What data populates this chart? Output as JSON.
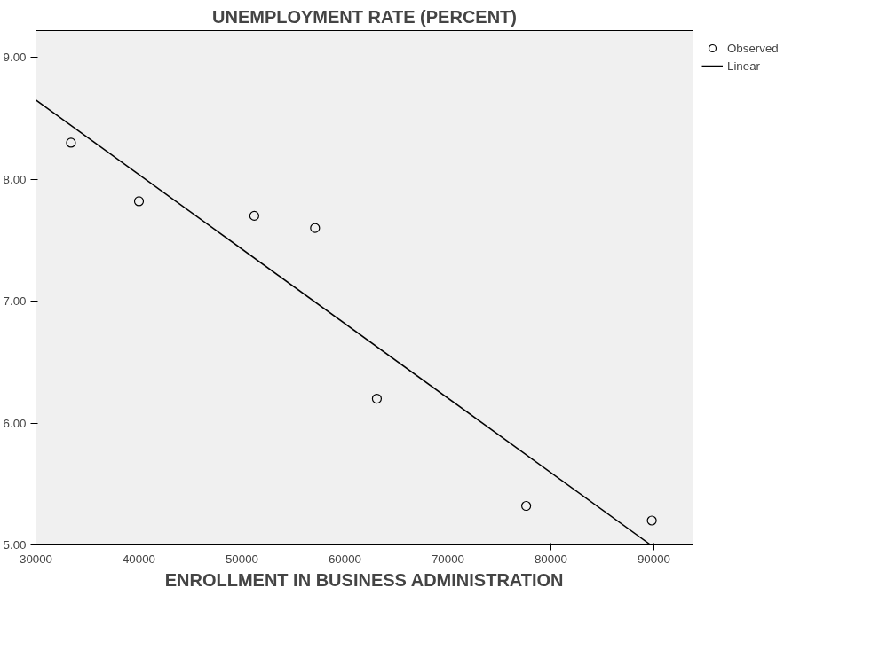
{
  "chart_data": {
    "type": "scatter",
    "title": "UNEMPLOYMENT RATE (PERCENT)",
    "xlabel": "ENROLLMENT IN BUSINESS ADMINISTRATION",
    "xlim": [
      30000,
      93800
    ],
    "ylim": [
      5.0,
      9.22
    ],
    "xticks": [
      30000,
      40000,
      50000,
      60000,
      70000,
      80000,
      90000
    ],
    "yticks": [
      {
        "value": 5,
        "label": "5.00"
      },
      {
        "value": 6,
        "label": "6.00"
      },
      {
        "value": 7,
        "label": "7.00"
      },
      {
        "value": 8,
        "label": "8.00"
      },
      {
        "value": 9,
        "label": "9.00"
      }
    ],
    "grid": false,
    "legend": "top right",
    "series": [
      {
        "name": "Observed",
        "marker": "circle",
        "color": "#000000",
        "x": [
          33400,
          40000,
          51200,
          57100,
          63100,
          77600,
          89800
        ],
        "values": [
          8.3,
          7.82,
          7.7,
          7.6,
          6.2,
          5.32,
          5.2
        ]
      },
      {
        "name": "Linear",
        "type": "line",
        "color": "#000000",
        "x": [
          30000,
          89700
        ],
        "values": [
          8.65,
          5.0
        ]
      }
    ]
  }
}
